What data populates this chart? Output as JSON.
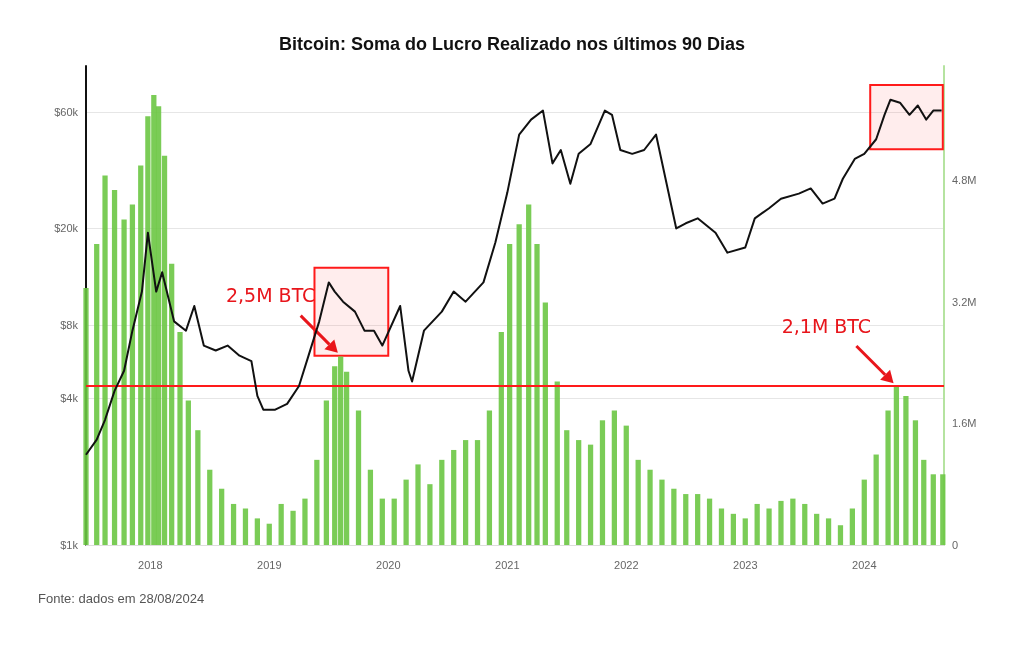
{
  "chart_data": {
    "type": "bar",
    "title": "Bitcoin: Soma do Lucro Realizado nos últimos 90 Dias",
    "annotations": [
      {
        "text": "2,5M BTC",
        "x": 2019.6,
        "y": 6000
      },
      {
        "text": "2,1M BTC",
        "x": 2024.27,
        "y": 4500
      },
      "Fonte: dados em 28/08/2024"
    ],
    "ref_lines": [
      {
        "axis": "y2",
        "value": 2100000,
        "color": "#ff1a1a"
      }
    ],
    "bands": [
      {
        "axis": "x",
        "from": 2019.38,
        "to": 2020.0,
        "color": "#ff1a1a"
      },
      {
        "axis": "x",
        "from": 2024.05,
        "to": 2024.66,
        "color": "#ff1a1a"
      }
    ],
    "xlim": [
      2017.46,
      2024.67
    ],
    "xticks": [
      2018,
      2019,
      2020,
      2021,
      2022,
      2023,
      2024
    ],
    "ylim": [
      1000,
      93000
    ],
    "yticks": [
      {
        "value": 1000,
        "label": "$1k"
      },
      {
        "value": 4000,
        "label": "$4k"
      },
      {
        "value": 8000,
        "label": "$8k"
      },
      {
        "value": 20000,
        "label": "$20k"
      },
      {
        "value": 60000,
        "label": "$60k"
      }
    ],
    "y2lim": [
      0,
      6300000
    ],
    "y2ticks": [
      0,
      {
        "value": 1600000,
        "label": "1.6M"
      },
      {
        "value": 3200000,
        "label": "3.2M"
      },
      {
        "value": 4800000,
        "label": "4.8M"
      }
    ],
    "log": "y",
    "grid": "y",
    "series": [
      {
        "axis": "y2",
        "color": "#6cc644",
        "x": [
          2017.46,
          2017.55,
          2017.62,
          2017.7,
          2017.78,
          2017.85,
          2017.92,
          2017.98,
          2018.03,
          2018.07,
          2018.12,
          2018.18,
          2018.25,
          2018.32,
          2018.4,
          2018.5,
          2018.6,
          2018.7,
          2018.8,
          2018.9,
          2019.0,
          2019.1,
          2019.2,
          2019.3,
          2019.4,
          2019.48,
          2019.55,
          2019.6,
          2019.65,
          2019.75,
          2019.85,
          2019.95,
          2020.05,
          2020.15,
          2020.25,
          2020.35,
          2020.45,
          2020.55,
          2020.65,
          2020.75,
          2020.85,
          2020.95,
          2021.02,
          2021.1,
          2021.18,
          2021.25,
          2021.32,
          2021.42,
          2021.5,
          2021.6,
          2021.7,
          2021.8,
          2021.9,
          2022.0,
          2022.1,
          2022.2,
          2022.3,
          2022.4,
          2022.5,
          2022.6,
          2022.7,
          2022.8,
          2022.9,
          2023.0,
          2023.1,
          2023.2,
          2023.3,
          2023.4,
          2023.5,
          2023.6,
          2023.7,
          2023.8,
          2023.9,
          2024.0,
          2024.1,
          2024.2,
          2024.27,
          2024.35,
          2024.43,
          2024.5,
          2024.58,
          2024.66
        ],
        "values": [
          3380000,
          3960000,
          4860000,
          4670000,
          4280000,
          4480000,
          4990000,
          5640000,
          5920000,
          5770000,
          5120000,
          3700000,
          2800000,
          1900000,
          1510000,
          990000,
          740000,
          540000,
          480000,
          350000,
          280000,
          540000,
          450000,
          610000,
          1120000,
          1900000,
          2350000,
          2480000,
          2280000,
          1770000,
          990000,
          610000,
          610000,
          860000,
          1060000,
          800000,
          1120000,
          1250000,
          1380000,
          1380000,
          1770000,
          2800000,
          3960000,
          4220000,
          4480000,
          3960000,
          3190000,
          2150000,
          1510000,
          1380000,
          1320000,
          1640000,
          1770000,
          1570000,
          1120000,
          990000,
          860000,
          740000,
          670000,
          670000,
          610000,
          480000,
          410000,
          350000,
          540000,
          480000,
          580000,
          610000,
          540000,
          410000,
          350000,
          260000,
          480000,
          860000,
          1190000,
          1770000,
          2090000,
          1960000,
          1640000,
          1120000,
          930000,
          930000
        ]
      },
      {
        "type": "line",
        "color": "#111111",
        "x": [
          2017.46,
          2017.55,
          2017.62,
          2017.7,
          2017.78,
          2017.85,
          2017.93,
          2017.98,
          2018.05,
          2018.1,
          2018.2,
          2018.3,
          2018.37,
          2018.45,
          2018.55,
          2018.65,
          2018.75,
          2018.85,
          2018.9,
          2018.95,
          2019.05,
          2019.15,
          2019.25,
          2019.33,
          2019.42,
          2019.5,
          2019.55,
          2019.62,
          2019.72,
          2019.8,
          2019.88,
          2019.95,
          2020.1,
          2020.17,
          2020.2,
          2020.3,
          2020.45,
          2020.55,
          2020.65,
          2020.8,
          2020.9,
          2021.0,
          2021.1,
          2021.2,
          2021.3,
          2021.38,
          2021.45,
          2021.53,
          2021.6,
          2021.7,
          2021.82,
          2021.88,
          2021.95,
          2022.05,
          2022.15,
          2022.25,
          2022.33,
          2022.42,
          2022.5,
          2022.6,
          2022.75,
          2022.85,
          2023.0,
          2023.08,
          2023.2,
          2023.3,
          2023.45,
          2023.55,
          2023.65,
          2023.75,
          2023.82,
          2023.92,
          2024.0,
          2024.1,
          2024.17,
          2024.22,
          2024.3,
          2024.38,
          2024.45,
          2024.52,
          2024.58,
          2024.65
        ],
        "values": [
          2350,
          2710,
          3270,
          4300,
          5200,
          7600,
          11000,
          19200,
          11000,
          13200,
          8300,
          7600,
          9600,
          6600,
          6300,
          6600,
          6000,
          5700,
          4100,
          3600,
          3600,
          3800,
          4500,
          6000,
          8300,
          12000,
          11000,
          10000,
          9100,
          7600,
          7600,
          6600,
          9600,
          5200,
          4700,
          7600,
          9100,
          11000,
          10000,
          12000,
          17500,
          28000,
          48600,
          56000,
          61000,
          37000,
          42000,
          30500,
          40500,
          44500,
          61000,
          58600,
          42000,
          40500,
          42000,
          48600,
          32000,
          20000,
          21000,
          22000,
          19200,
          15900,
          16700,
          22000,
          24200,
          26500,
          27800,
          29200,
          25300,
          26500,
          32000,
          38600,
          40500,
          46500,
          58600,
          67600,
          65700,
          58600,
          64000,
          56000,
          61000,
          61000
        ]
      }
    ]
  }
}
